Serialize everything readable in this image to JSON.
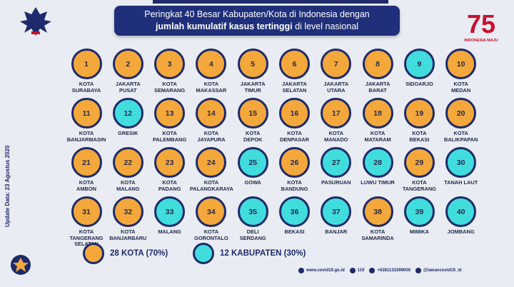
{
  "header": {
    "line1": "Peringkat 40 Besar Kabupaten/Kota di Indonesia dengan",
    "line2_bold": "jumlah kumulatif kasus tertinggi",
    "line2_rest": " di level nasional"
  },
  "logo_right": {
    "number": "75",
    "sub": "INDONESIA MAJU"
  },
  "side_text": "Update Data: 23 Agustus 2020",
  "colors": {
    "kota": "#f4a83b",
    "kabupaten": "#41dddd",
    "border": "#1d2a6b",
    "header_bg": "#1f2f7a"
  },
  "items": [
    {
      "rank": "1",
      "label": "KOTA\nSURABAYA",
      "type": "kota"
    },
    {
      "rank": "2",
      "label": "JAKARTA\nPUSAT",
      "type": "kota"
    },
    {
      "rank": "3",
      "label": "KOTA\nSEMARANG",
      "type": "kota"
    },
    {
      "rank": "4",
      "label": "KOTA\nMAKASSAR",
      "type": "kota"
    },
    {
      "rank": "5",
      "label": "JAKARTA\nTIMUR",
      "type": "kota"
    },
    {
      "rank": "6",
      "label": "JAKARTA\nSELATAN",
      "type": "kota"
    },
    {
      "rank": "7",
      "label": "JAKARTA\nUTARA",
      "type": "kota"
    },
    {
      "rank": "8",
      "label": "JAKARTA\nBARAT",
      "type": "kota"
    },
    {
      "rank": "9",
      "label": "SIDOARJO",
      "type": "kab"
    },
    {
      "rank": "10",
      "label": "KOTA\nMEDAN",
      "type": "kota"
    },
    {
      "rank": "11",
      "label": "KOTA\nBANJARMASIN",
      "type": "kota"
    },
    {
      "rank": "12",
      "label": "GRESIK",
      "type": "kab"
    },
    {
      "rank": "13",
      "label": "KOTA\nPALEMBANG",
      "type": "kota"
    },
    {
      "rank": "14",
      "label": "KOTA\nJAYAPURA",
      "type": "kota"
    },
    {
      "rank": "15",
      "label": "KOTA\nDEPOK",
      "type": "kota"
    },
    {
      "rank": "16",
      "label": "KOTA\nDENPASAR",
      "type": "kota"
    },
    {
      "rank": "17",
      "label": "KOTA\nMANADO",
      "type": "kota"
    },
    {
      "rank": "18",
      "label": "KOTA\nMATARAM",
      "type": "kota"
    },
    {
      "rank": "19",
      "label": "KOTA\nBEKASI",
      "type": "kota"
    },
    {
      "rank": "20",
      "label": "KOTA\nBALIKPAPAN",
      "type": "kota"
    },
    {
      "rank": "21",
      "label": "KOTA\nAMBON",
      "type": "kota"
    },
    {
      "rank": "22",
      "label": "KOTA\nMALANG",
      "type": "kota"
    },
    {
      "rank": "23",
      "label": "KOTA\nPADANG",
      "type": "kota"
    },
    {
      "rank": "24",
      "label": "KOTA\nPALANGKARAYA",
      "type": "kota"
    },
    {
      "rank": "25",
      "label": "GOWA",
      "type": "kab"
    },
    {
      "rank": "26",
      "label": "KOTA\nBANDUNG",
      "type": "kota"
    },
    {
      "rank": "27",
      "label": "PASURUAN",
      "type": "kab"
    },
    {
      "rank": "28",
      "label": "LUWU TIMUR",
      "type": "kab"
    },
    {
      "rank": "29",
      "label": "KOTA\nTANGERANG",
      "type": "kota"
    },
    {
      "rank": "30",
      "label": "TANAH LAUT",
      "type": "kab"
    },
    {
      "rank": "31",
      "label": "KOTA\nTANGERANG\nSELATAN",
      "type": "kota"
    },
    {
      "rank": "32",
      "label": "KOTA\nBANJARBARU",
      "type": "kota"
    },
    {
      "rank": "33",
      "label": "MALANG",
      "type": "kab"
    },
    {
      "rank": "34",
      "label": "KOTA\nGORONTALO",
      "type": "kota"
    },
    {
      "rank": "35",
      "label": "DELI\nSERDANG",
      "type": "kab"
    },
    {
      "rank": "36",
      "label": "BEKASI",
      "type": "kab"
    },
    {
      "rank": "37",
      "label": "BANJAR",
      "type": "kab"
    },
    {
      "rank": "38",
      "label": "KOTA\nSAMARINDA",
      "type": "kota"
    },
    {
      "rank": "39",
      "label": "MIMIKA",
      "type": "kab"
    },
    {
      "rank": "40",
      "label": "JOMBANG",
      "type": "kab"
    }
  ],
  "legend": {
    "kota": "28 KOTA (70%)",
    "kabupaten": "12 KABUPATEN (30%)"
  },
  "footer": {
    "web": "www.covid19.go.id",
    "phone": "119",
    "whatsapp": "+6281133399000",
    "social": "@lawancovid19_id"
  }
}
